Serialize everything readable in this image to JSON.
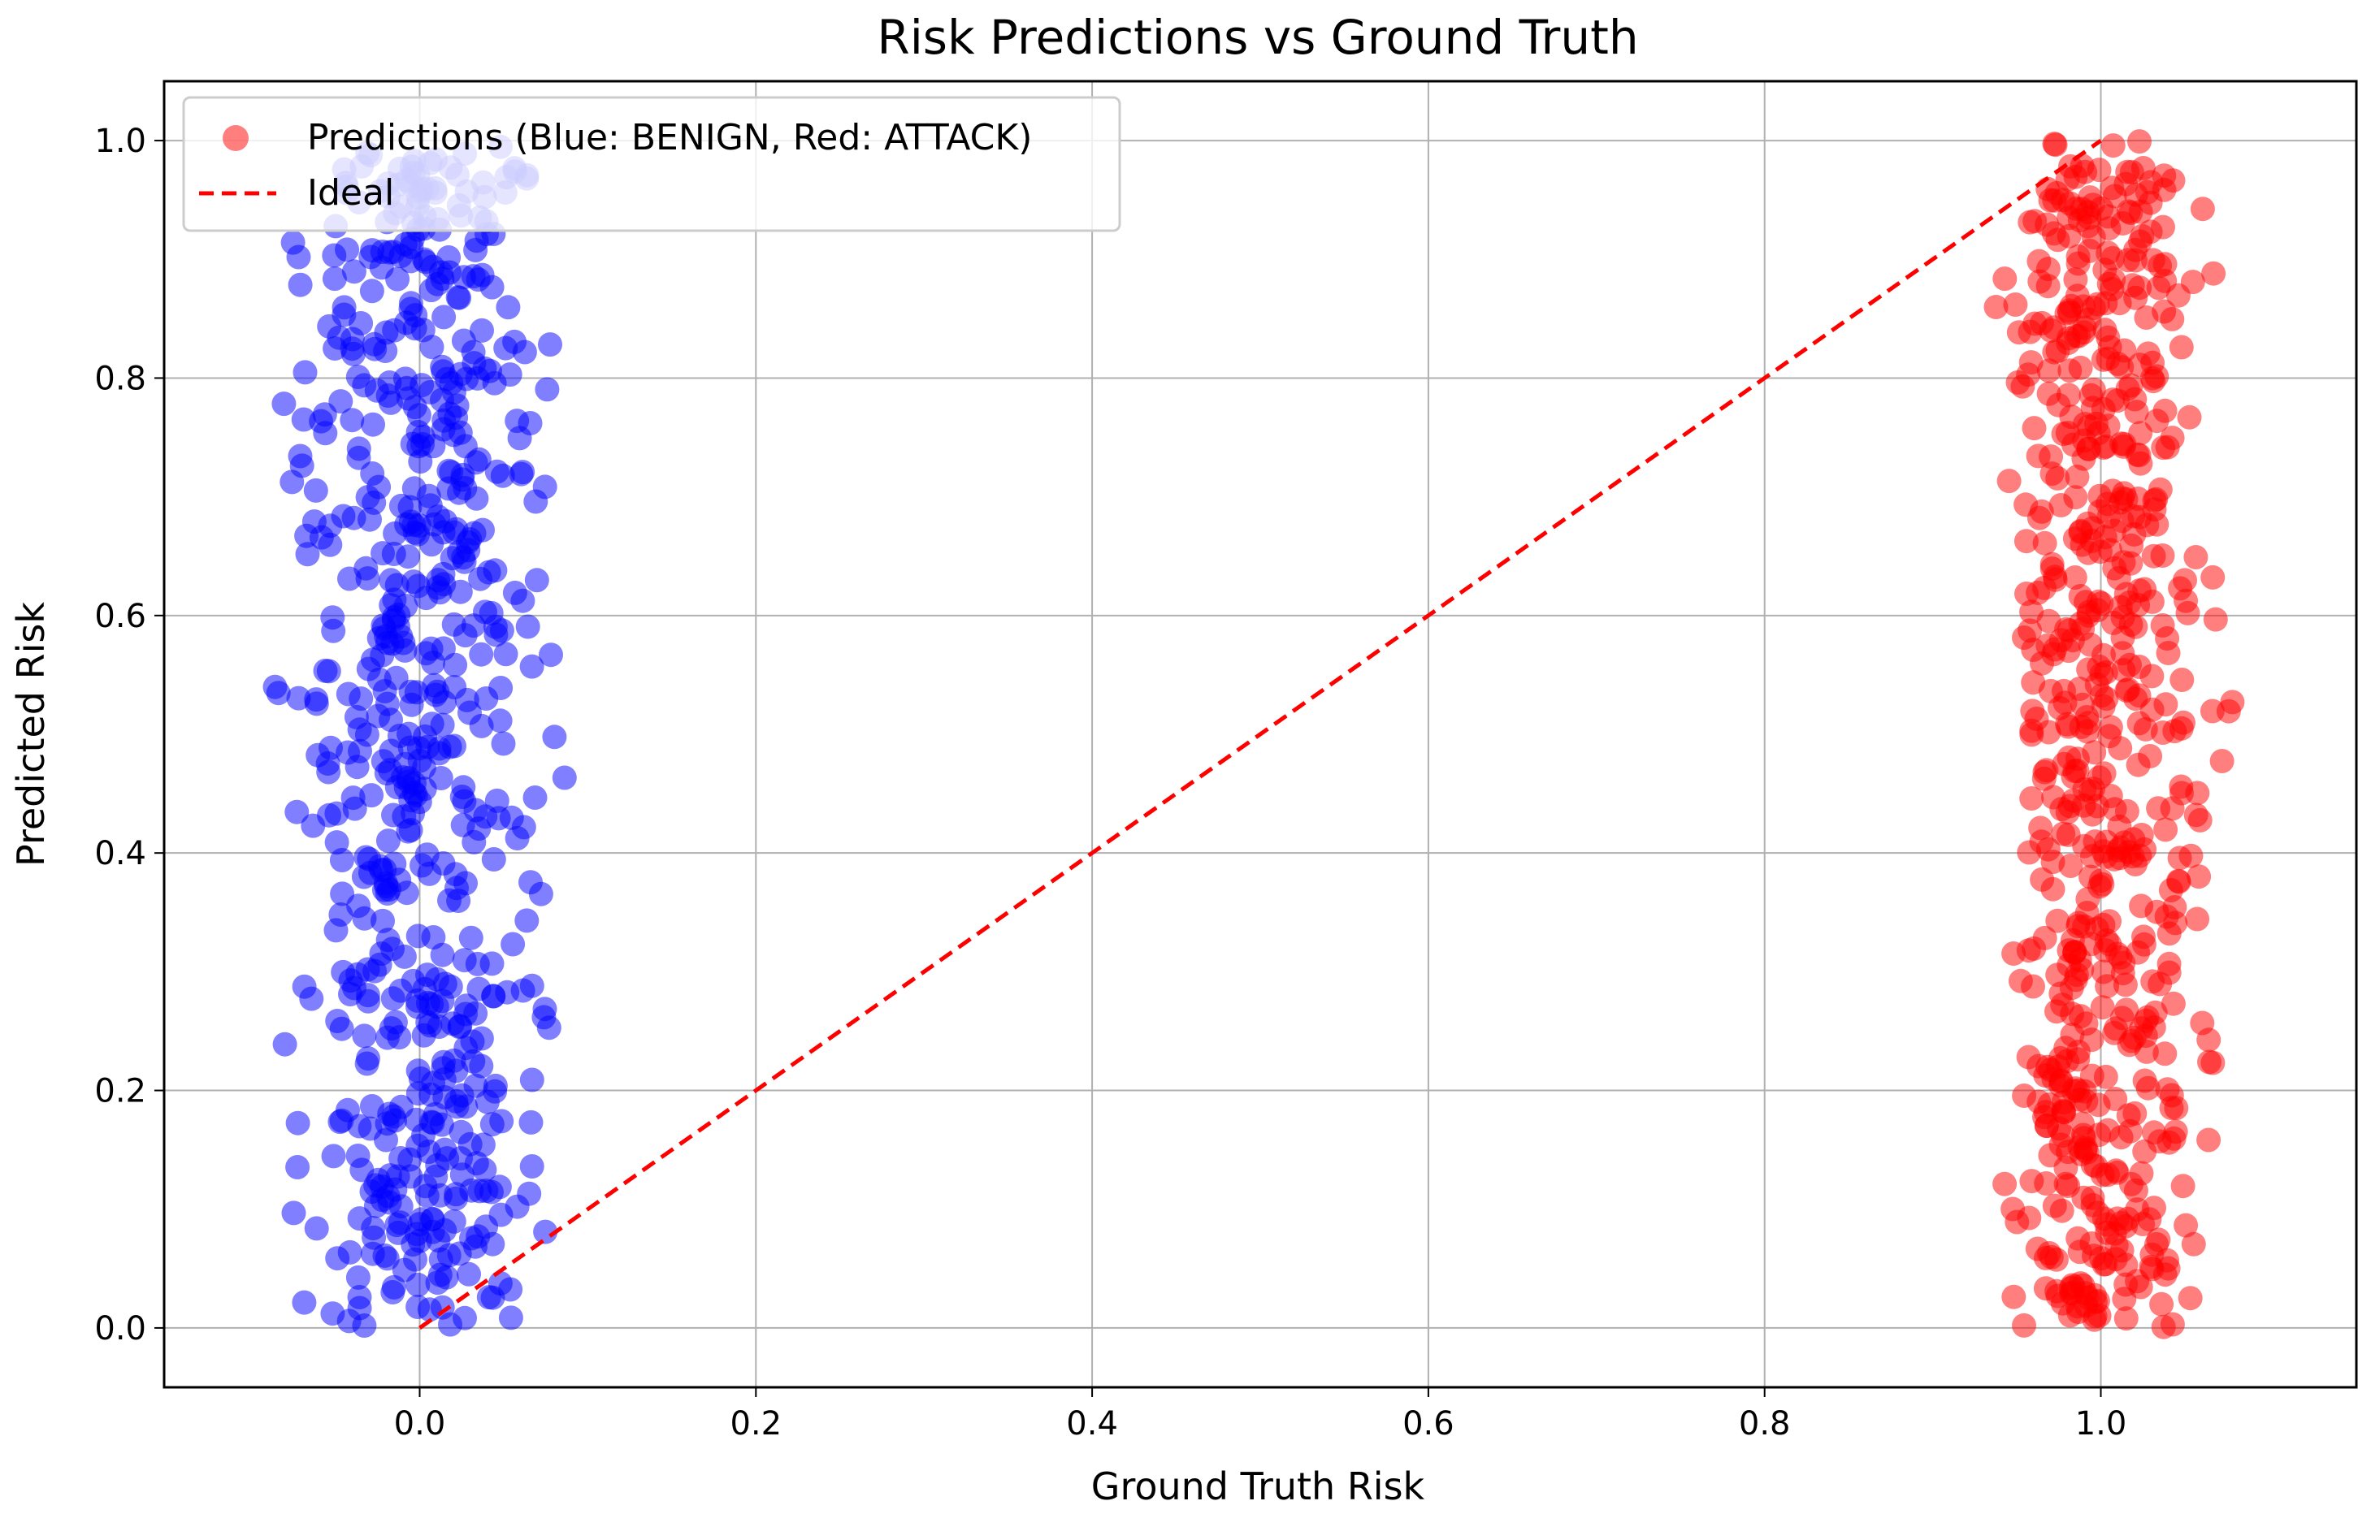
{
  "chart_data": {
    "type": "scatter",
    "title": "Risk Predictions vs Ground Truth",
    "xlabel": "Ground Truth Risk",
    "ylabel": "Predicted Risk",
    "xlim": [
      -0.152,
      1.152
    ],
    "ylim": [
      -0.05,
      1.05
    ],
    "x_ticks": [
      0.0,
      0.2,
      0.4,
      0.6,
      0.8,
      1.0
    ],
    "x_tick_labels": [
      "0.0",
      "0.2",
      "0.4",
      "0.6",
      "0.8",
      "1.0"
    ],
    "y_ticks": [
      0.0,
      0.2,
      0.4,
      0.6,
      0.8,
      1.0
    ],
    "y_tick_labels": [
      "0.0",
      "0.2",
      "0.4",
      "0.6",
      "0.8",
      "1.0"
    ],
    "grid": true,
    "legend_position": "top-left",
    "legend": [
      {
        "label": "Predictions (Blue: BENIGN, Red: ATTACK)",
        "marker": "circle",
        "color": "#ff0000"
      },
      {
        "label": "Ideal",
        "marker": "dashed-line",
        "color": "#ff0000"
      }
    ],
    "series": [
      {
        "name": "Predictions (Blue: BENIGN, Red: ATTACK)",
        "groups": [
          {
            "class": "BENIGN",
            "color": "#0000ff",
            "ground_truth": 0.0,
            "x_jitter_range": [
              -0.1,
              0.1
            ],
            "y_range": [
              0.0,
              1.0
            ],
            "points_shown": 660
          },
          {
            "class": "ATTACK",
            "color": "#ff0000",
            "ground_truth": 1.0,
            "x_jitter_range": [
              0.92,
              1.09
            ],
            "y_range": [
              0.0,
              1.0
            ],
            "points_shown": 660
          }
        ]
      },
      {
        "name": "Ideal",
        "style": "dashed",
        "color": "#ff0000",
        "x": [
          0.0,
          1.0
        ],
        "y": [
          0.0,
          1.0
        ]
      }
    ]
  }
}
